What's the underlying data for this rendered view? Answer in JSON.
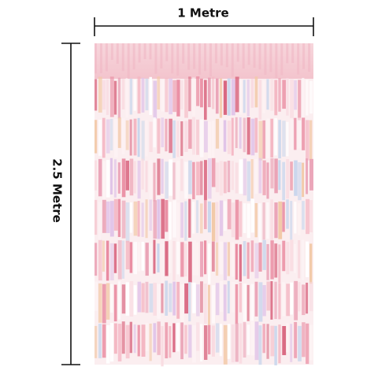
{
  "dimensions": {
    "width": "1 Metre",
    "height": "2.5 Metre"
  }
}
